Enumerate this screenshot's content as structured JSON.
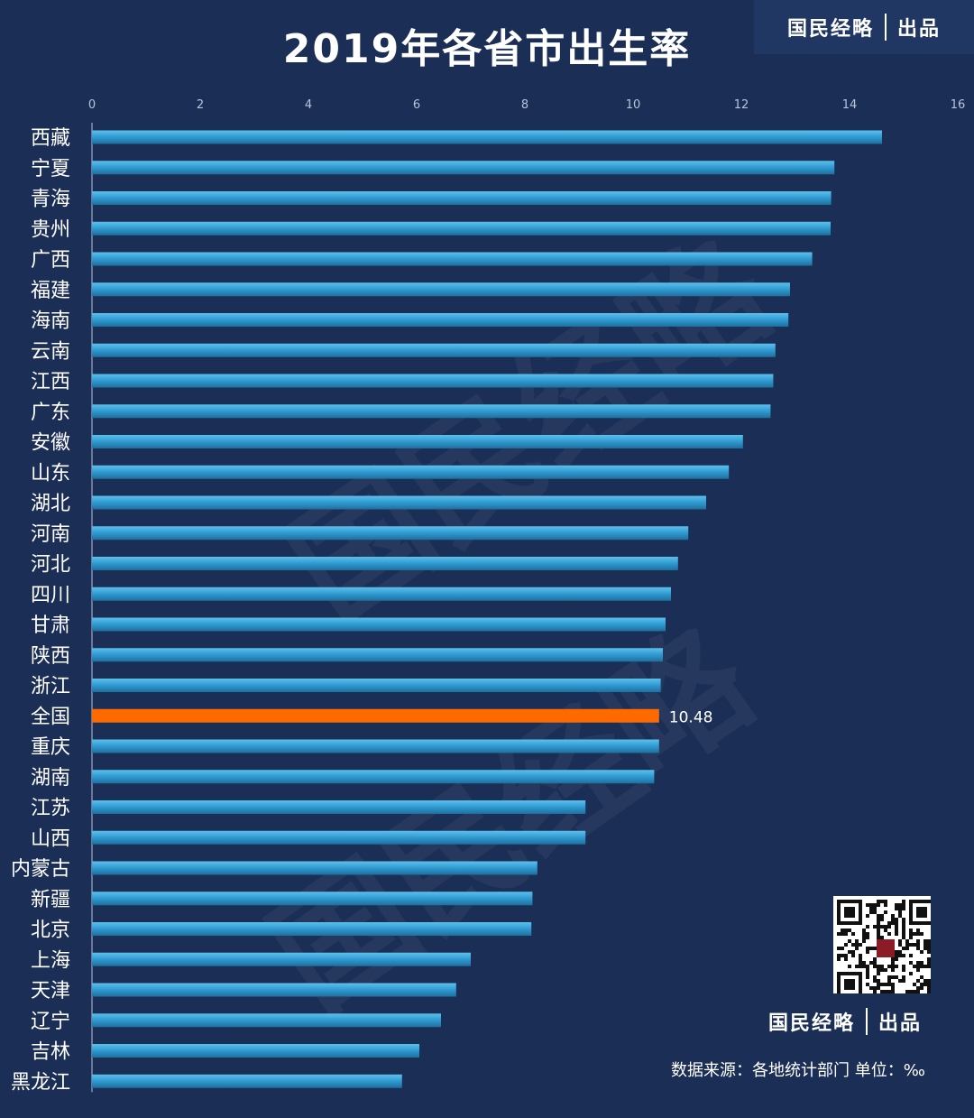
{
  "title": "2019年各省市出生率",
  "brand": {
    "left": "国民经略",
    "right": "出品"
  },
  "source": "数据来源：各地统计部门  单位：‰",
  "colors": {
    "background": "#1b2e55",
    "bar": "#2f9ad0",
    "highlight": "#ff6a00",
    "text": "#ffffff",
    "axis": "#b8c4dc"
  },
  "chart_data": {
    "type": "bar",
    "orientation": "horizontal",
    "xlim": [
      0,
      16
    ],
    "xticks": [
      0,
      2,
      4,
      6,
      8,
      10,
      12,
      14,
      16
    ],
    "categories": [
      "西藏",
      "宁夏",
      "青海",
      "贵州",
      "广西",
      "福建",
      "海南",
      "云南",
      "江西",
      "广东",
      "安徽",
      "山东",
      "湖北",
      "河南",
      "河北",
      "四川",
      "甘肃",
      "陕西",
      "浙江",
      "全国",
      "重庆",
      "湖南",
      "江苏",
      "山西",
      "内蒙古",
      "新疆",
      "北京",
      "上海",
      "天津",
      "辽宁",
      "吉林",
      "黑龙江"
    ],
    "values": [
      14.6,
      13.72,
      13.66,
      13.65,
      13.31,
      12.9,
      12.87,
      12.63,
      12.59,
      12.54,
      12.03,
      11.77,
      11.35,
      11.02,
      10.83,
      10.7,
      10.6,
      10.55,
      10.51,
      10.48,
      10.48,
      10.39,
      9.12,
      9.12,
      8.23,
      8.14,
      8.12,
      7.0,
      6.73,
      6.45,
      6.05,
      5.73
    ],
    "highlight": {
      "category": "全国",
      "label": "10.48"
    },
    "grid": false
  }
}
